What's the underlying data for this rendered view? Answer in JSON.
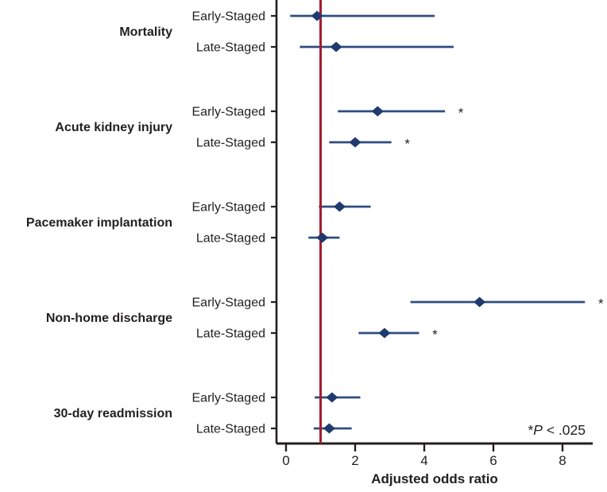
{
  "chart_data": {
    "type": "forest",
    "title": "",
    "xlabel": "Adjusted odds ratio",
    "x_ticks": [
      0,
      2,
      4,
      6,
      8
    ],
    "xlim": [
      -0.28,
      9.25
    ],
    "reference_line": 1,
    "grid": false,
    "legend_position": "none",
    "sig_marker": "*",
    "footnote": {
      "star": "*",
      "p": "P",
      "rest": " < .025"
    },
    "groups": [
      {
        "label": "Mortality",
        "rows": [
          {
            "label": "Early-Staged",
            "or": 0.9,
            "ci_low": 0.12,
            "ci_high": 4.3,
            "significant": false
          },
          {
            "label": "Late-Staged",
            "or": 1.45,
            "ci_low": 0.4,
            "ci_high": 4.85,
            "significant": false
          }
        ]
      },
      {
        "label": "Acute kidney injury",
        "rows": [
          {
            "label": "Early-Staged",
            "or": 2.65,
            "ci_low": 1.5,
            "ci_high": 4.6,
            "significant": true
          },
          {
            "label": "Late-Staged",
            "or": 2.0,
            "ci_low": 1.25,
            "ci_high": 3.05,
            "significant": true
          }
        ]
      },
      {
        "label": "Pacemaker implantation",
        "rows": [
          {
            "label": "Early-Staged",
            "or": 1.55,
            "ci_low": 0.95,
            "ci_high": 2.45,
            "significant": false
          },
          {
            "label": "Late-Staged",
            "or": 1.05,
            "ci_low": 0.65,
            "ci_high": 1.55,
            "significant": false
          }
        ]
      },
      {
        "label": "Non-home discharge",
        "rows": [
          {
            "label": "Early-Staged",
            "or": 5.6,
            "ci_low": 3.6,
            "ci_high": 8.65,
            "significant": true
          },
          {
            "label": "Late-Staged",
            "or": 2.85,
            "ci_low": 2.1,
            "ci_high": 3.85,
            "significant": true
          }
        ]
      },
      {
        "label": "30-day readmission",
        "rows": [
          {
            "label": "Early-Staged",
            "or": 1.33,
            "ci_low": 0.83,
            "ci_high": 2.15,
            "significant": false
          },
          {
            "label": "Late-Staged",
            "or": 1.25,
            "ci_low": 0.8,
            "ci_high": 1.9,
            "significant": false
          }
        ]
      }
    ],
    "colors": {
      "marker": "#1e3a6e",
      "ci_line": "#2e4d7f",
      "reference": "#a51c30",
      "axis": "#231f20",
      "text": "#231f20"
    }
  }
}
